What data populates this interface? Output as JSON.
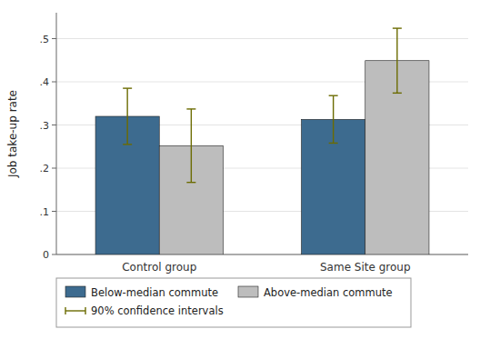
{
  "chart_data": {
    "type": "bar",
    "categories": [
      "Control group",
      "Same Site group"
    ],
    "series": [
      {
        "name": "Below-median commute",
        "color": "#3d6b8f",
        "values": [
          0.32,
          0.313
        ],
        "errors": [
          0.065,
          0.055
        ]
      },
      {
        "name": "Above-median commute",
        "color": "#bdbdbd",
        "values": [
          0.252,
          0.449
        ],
        "errors": [
          0.085,
          0.075
        ]
      }
    ],
    "error_bar_label": "90% confidence intervals",
    "error_bar_color": "#6b6b00",
    "y_label": "Job take-up rate",
    "ylim": [
      0,
      0.56
    ],
    "yticks": [
      0,
      {
        "value": 0.1,
        "label": ".1"
      },
      {
        "value": 0.2,
        "label": ".2"
      },
      {
        "value": 0.3,
        "label": ".3"
      },
      {
        "value": 0.4,
        "label": ".4"
      },
      {
        "value": 0.5,
        "label": ".5"
      }
    ],
    "grid": true,
    "legend": "bottom"
  }
}
